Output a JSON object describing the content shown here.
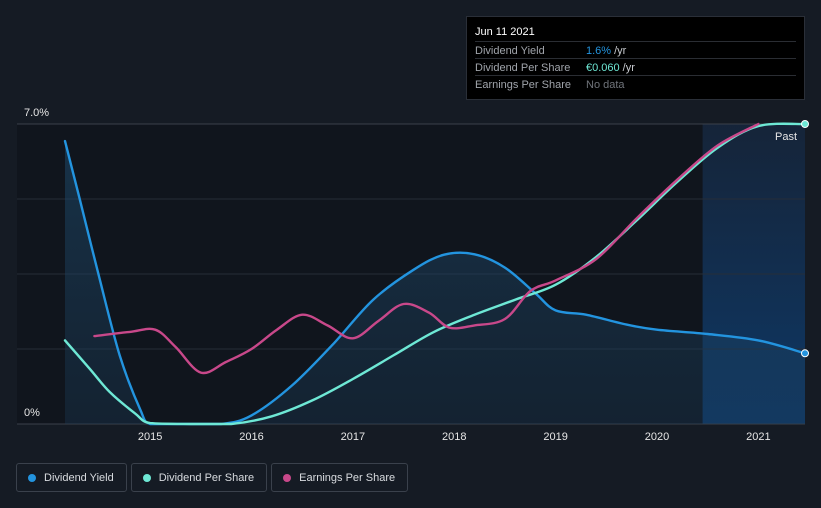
{
  "tooltip": {
    "date": "Jun 11 2021",
    "rows": [
      {
        "label": "Dividend Yield",
        "value": "1.6%",
        "unit": "/yr",
        "color": "#2394df"
      },
      {
        "label": "Dividend Per Share",
        "value": "€0.060",
        "unit": "/yr",
        "color": "#6ee8d5"
      },
      {
        "label": "Earnings Per Share",
        "value": "No data",
        "unit": "",
        "color": "#70747b"
      }
    ]
  },
  "colors": {
    "background": "#151b24",
    "dividend_yield": "#2394df",
    "dividend_per_share": "#6ee8d5",
    "earnings_per_share": "#c8488a"
  },
  "chart_data": {
    "type": "line",
    "x_ticks": [
      "2015",
      "2016",
      "2017",
      "2018",
      "2019",
      "2020",
      "2021"
    ],
    "y_ticks": [
      "7.0%",
      "0%"
    ],
    "ylim": [
      0,
      7.0
    ],
    "xlim": [
      2014.16,
      2021.46
    ],
    "past_region_start": 2020.45,
    "past_label": "Past",
    "series": [
      {
        "name": "Dividend Yield",
        "unit": "%",
        "x": [
          2014.16,
          2014.3,
          2014.5,
          2014.7,
          2014.9,
          2015.0,
          2015.3,
          2015.7,
          2016.0,
          2016.4,
          2016.8,
          2017.2,
          2017.6,
          2017.9,
          2018.2,
          2018.5,
          2018.8,
          2019.0,
          2019.3,
          2019.7,
          2020.0,
          2020.5,
          2021.0,
          2021.46
        ],
        "y": [
          6.6,
          5.3,
          3.4,
          1.6,
          0.35,
          0.0,
          0.0,
          0.0,
          0.2,
          0.9,
          1.85,
          2.9,
          3.6,
          3.95,
          3.96,
          3.65,
          3.05,
          2.65,
          2.55,
          2.32,
          2.2,
          2.1,
          1.95,
          1.65
        ]
      },
      {
        "name": "Dividend Per Share",
        "unit": "",
        "x": [
          2014.16,
          2014.4,
          2014.6,
          2014.85,
          2015.0,
          2015.4,
          2015.8,
          2016.2,
          2016.6,
          2017.0,
          2017.4,
          2017.8,
          2018.2,
          2018.6,
          2019.0,
          2019.4,
          2019.8,
          2020.2,
          2020.6,
          2021.0,
          2021.46
        ],
        "y": [
          1.95,
          1.3,
          0.75,
          0.25,
          0.02,
          0.0,
          0.0,
          0.18,
          0.55,
          1.05,
          1.6,
          2.15,
          2.55,
          2.9,
          3.25,
          3.9,
          4.75,
          5.65,
          6.45,
          6.95,
          7.0
        ]
      },
      {
        "name": "Earnings Per Share",
        "unit": "",
        "x": [
          2014.45,
          2014.8,
          2015.05,
          2015.25,
          2015.5,
          2015.75,
          2016.0,
          2016.25,
          2016.5,
          2016.75,
          2017.0,
          2017.25,
          2017.5,
          2017.75,
          2017.95,
          2018.2,
          2018.5,
          2018.75,
          2019.0,
          2019.4,
          2019.8,
          2020.2,
          2020.6,
          2021.0
        ],
        "y": [
          2.05,
          2.15,
          2.2,
          1.8,
          1.2,
          1.45,
          1.75,
          2.2,
          2.55,
          2.3,
          2.0,
          2.4,
          2.8,
          2.6,
          2.25,
          2.3,
          2.45,
          3.1,
          3.35,
          3.85,
          4.8,
          5.7,
          6.5,
          7.0
        ]
      }
    ]
  },
  "legend": [
    {
      "label": "Dividend Yield",
      "color": "#2394df"
    },
    {
      "label": "Dividend Per Share",
      "color": "#6ee8d5"
    },
    {
      "label": "Earnings Per Share",
      "color": "#c8488a"
    }
  ]
}
